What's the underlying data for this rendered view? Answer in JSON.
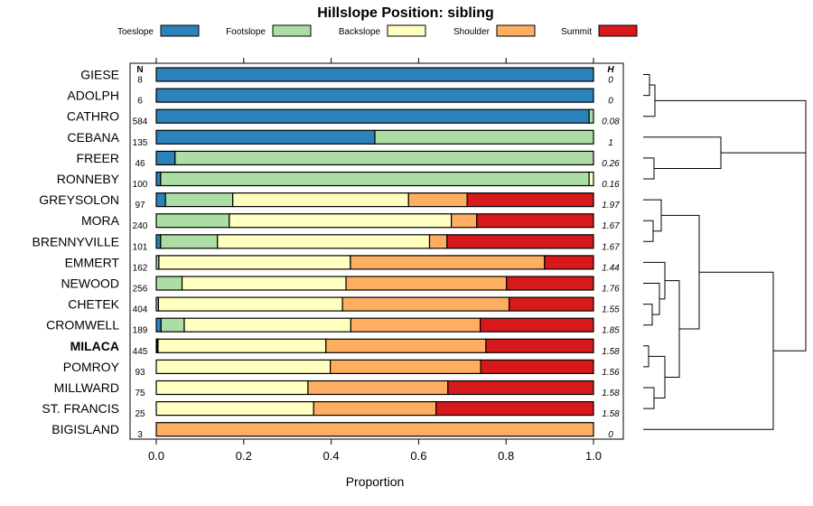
{
  "chart_data": {
    "type": "bar",
    "orientation": "horizontal",
    "stacked": true,
    "title": "Hillslope Position: sibling",
    "xlabel": "Proportion",
    "xlim": [
      0,
      1
    ],
    "xticks": [
      "0.0",
      "0.2",
      "0.4",
      "0.6",
      "0.8",
      "1.0"
    ],
    "column_headers": {
      "n": "N",
      "h": "H"
    },
    "legend": {
      "position": "top",
      "entries": [
        {
          "name": "Toeslope",
          "color": "#2b83ba"
        },
        {
          "name": "Footslope",
          "color": "#abdda4"
        },
        {
          "name": "Backslope",
          "color": "#ffffbf"
        },
        {
          "name": "Shoulder",
          "color": "#fdae61"
        },
        {
          "name": "Summit",
          "color": "#d7191c"
        }
      ]
    },
    "rows": [
      {
        "name": "GIESE",
        "n": "8",
        "h": "0",
        "bold": false,
        "values": [
          1.0,
          0,
          0,
          0,
          0
        ]
      },
      {
        "name": "ADOLPH",
        "n": "6",
        "h": "0",
        "bold": false,
        "values": [
          1.0,
          0,
          0,
          0,
          0
        ]
      },
      {
        "name": "CATHRO",
        "n": "584",
        "h": "0.08",
        "bold": false,
        "values": [
          0.99,
          0.01,
          0,
          0,
          0
        ]
      },
      {
        "name": "CEBANA",
        "n": "135",
        "h": "1",
        "bold": false,
        "values": [
          0.5,
          0.5,
          0,
          0,
          0
        ]
      },
      {
        "name": "FREER",
        "n": "46",
        "h": "0.26",
        "bold": false,
        "values": [
          0.043,
          0.957,
          0,
          0,
          0
        ]
      },
      {
        "name": "RONNEBY",
        "n": "100",
        "h": "0.16",
        "bold": false,
        "values": [
          0.01,
          0.98,
          0.01,
          0,
          0
        ]
      },
      {
        "name": "GREYSOLON",
        "n": "97",
        "h": "1.97",
        "bold": false,
        "values": [
          0.021,
          0.154,
          0.402,
          0.134,
          0.289
        ]
      },
      {
        "name": "MORA",
        "n": "240",
        "h": "1.67",
        "bold": false,
        "values": [
          0,
          0.167,
          0.508,
          0.058,
          0.267
        ]
      },
      {
        "name": "BRENNYVILLE",
        "n": "101",
        "h": "1.67",
        "bold": false,
        "values": [
          0.01,
          0.13,
          0.485,
          0.04,
          0.335
        ]
      },
      {
        "name": "EMMERT",
        "n": "162",
        "h": "1.44",
        "bold": false,
        "values": [
          0,
          0.006,
          0.438,
          0.444,
          0.112
        ]
      },
      {
        "name": "NEWOOD",
        "n": "256",
        "h": "1.76",
        "bold": false,
        "values": [
          0,
          0.059,
          0.375,
          0.367,
          0.199
        ]
      },
      {
        "name": "CHETEK",
        "n": "404",
        "h": "1.55",
        "bold": false,
        "values": [
          0,
          0.005,
          0.421,
          0.381,
          0.193
        ]
      },
      {
        "name": "CROMWELL",
        "n": "189",
        "h": "1.85",
        "bold": false,
        "values": [
          0.011,
          0.053,
          0.381,
          0.296,
          0.259
        ]
      },
      {
        "name": "MILACA",
        "n": "445",
        "h": "1.58",
        "bold": true,
        "values": [
          0.002,
          0.002,
          0.384,
          0.366,
          0.246
        ]
      },
      {
        "name": "POMROY",
        "n": "93",
        "h": "1.56",
        "bold": false,
        "values": [
          0,
          0,
          0.398,
          0.344,
          0.258
        ]
      },
      {
        "name": "MILLWARD",
        "n": "75",
        "h": "1.58",
        "bold": false,
        "values": [
          0,
          0,
          0.347,
          0.32,
          0.333
        ]
      },
      {
        "name": "ST. FRANCIS",
        "n": "25",
        "h": "1.58",
        "bold": false,
        "values": [
          0,
          0,
          0.36,
          0.28,
          0.36
        ]
      },
      {
        "name": "BIGISLAND",
        "n": "3",
        "h": "0",
        "bold": false,
        "values": [
          0,
          0,
          0,
          1.0,
          0
        ]
      }
    ]
  }
}
